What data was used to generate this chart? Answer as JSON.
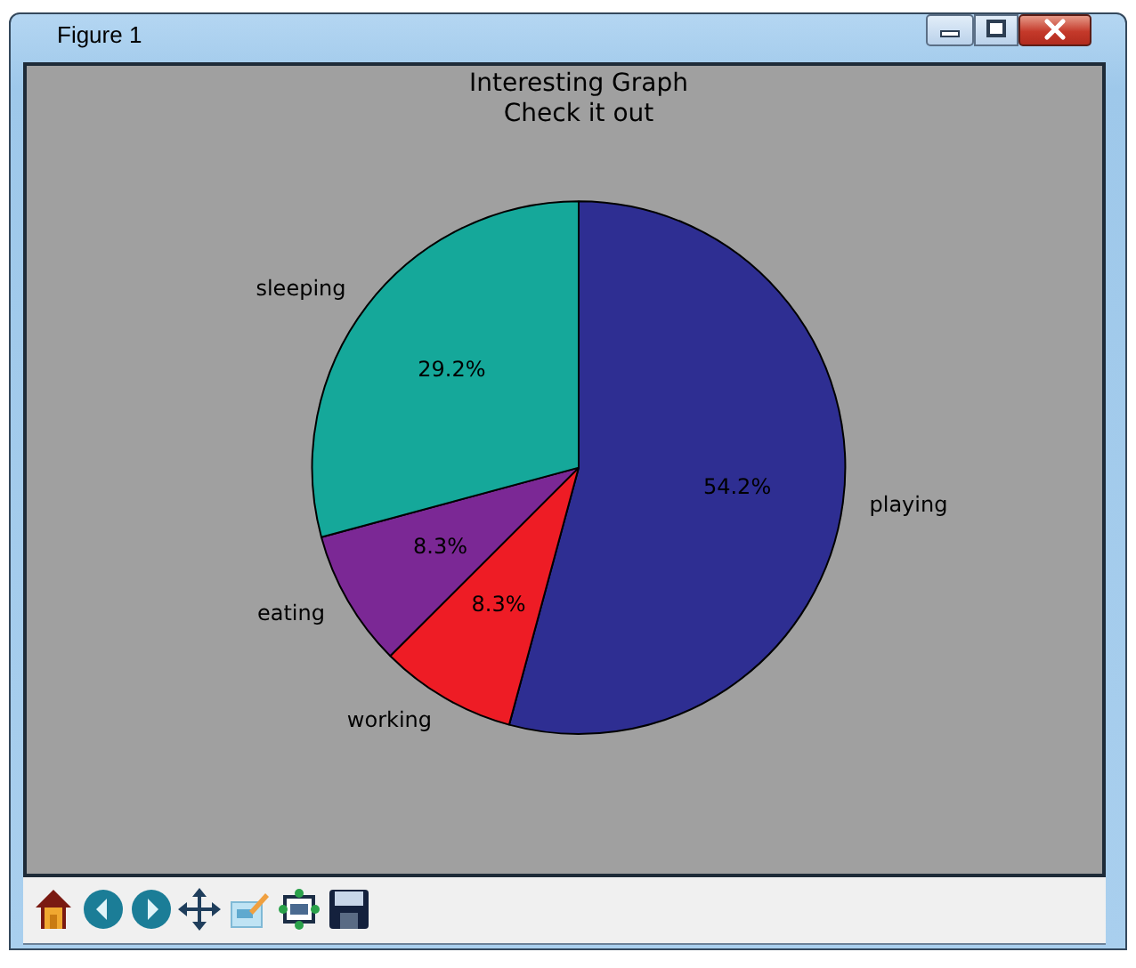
{
  "chart_data": {
    "type": "pie",
    "title": "Interesting Graph",
    "subtitle": "Check it out",
    "categories": [
      "playing",
      "working",
      "eating",
      "sleeping"
    ],
    "values": [
      54.2,
      8.3,
      8.3,
      29.2
    ],
    "colors": [
      "#2e2e92",
      "#ee1c25",
      "#7b2895",
      "#15a89a"
    ],
    "value_labels": [
      "54.2%",
      "8.3%",
      "8.3%",
      "29.2%"
    ],
    "annotations": [
      "Figure 1"
    ]
  }
}
